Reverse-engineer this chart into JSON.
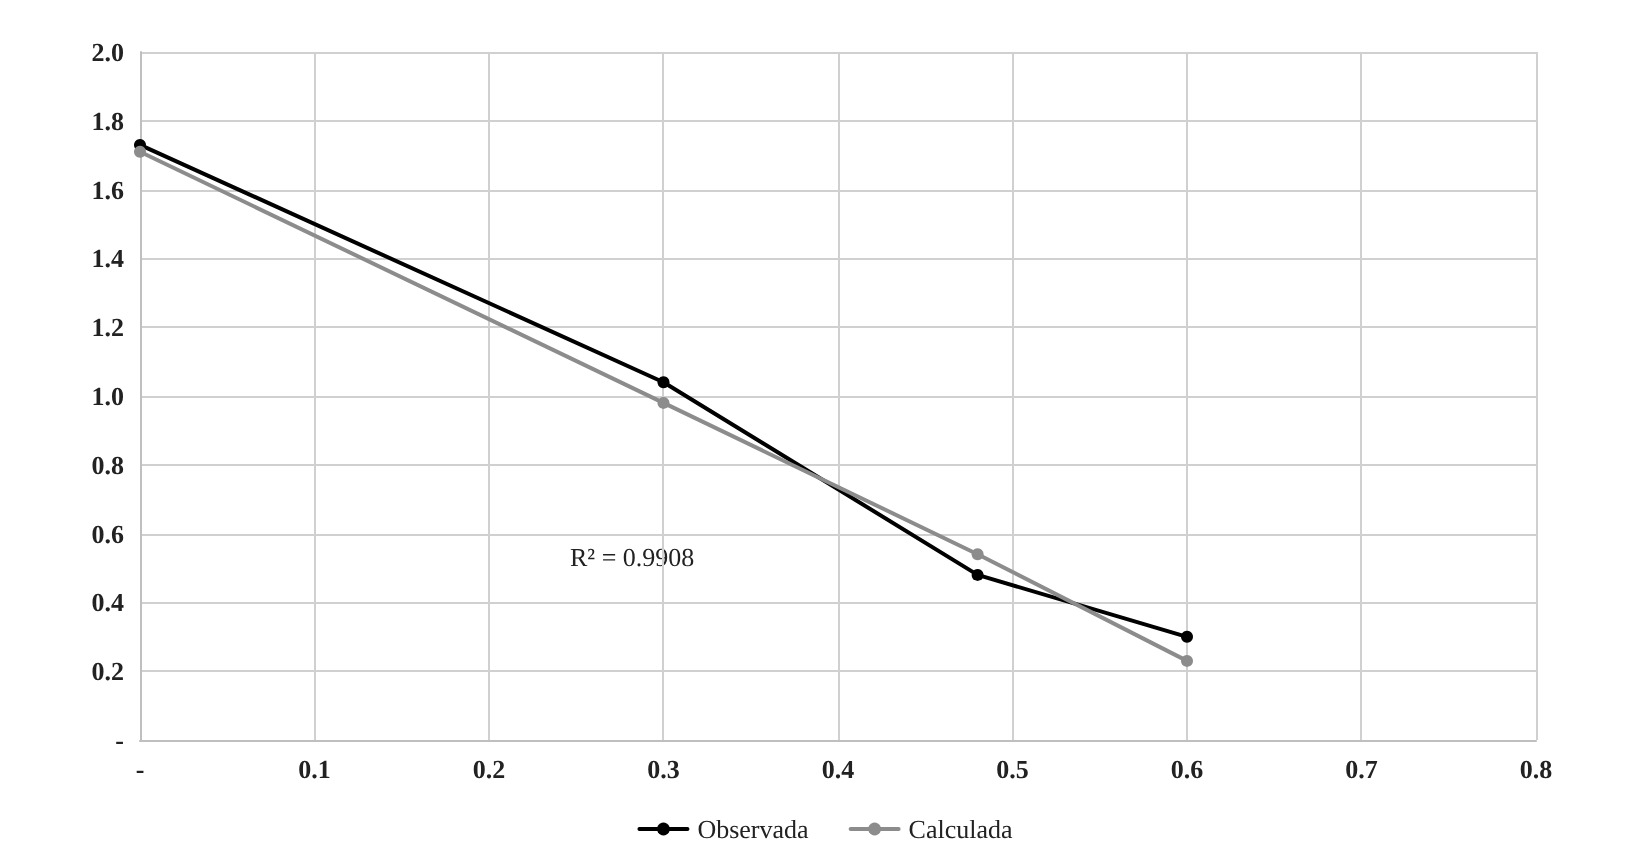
{
  "chart_data": {
    "type": "line",
    "x": [
      0,
      0.3,
      0.48,
      0.6
    ],
    "series": [
      {
        "name": "Observada",
        "color": "#000000",
        "values": [
          1.73,
          1.04,
          0.48,
          0.3
        ]
      },
      {
        "name": "Calculada",
        "color": "#8c8c8c",
        "values": [
          1.71,
          0.98,
          0.54,
          0.23
        ]
      }
    ],
    "xlim": [
      0,
      0.8
    ],
    "xticks": [
      {
        "value": 0,
        "label": "-"
      },
      0.1,
      0.2,
      0.3,
      0.4,
      0.5,
      0.6,
      0.7,
      0.8
    ],
    "ylim": [
      0,
      2
    ],
    "yticks": [
      {
        "value": 0,
        "label": "-"
      },
      0.2,
      0.4,
      0.6,
      0.8,
      {
        "value": 1,
        "label": "1.0"
      },
      1.2,
      1.4,
      1.6,
      1.8,
      {
        "value": 2,
        "label": "2.0"
      }
    ],
    "annotations": [
      "R² = 0.9908"
    ],
    "grid": true,
    "legend": "bottom",
    "marker": "circle",
    "line_style": "solid"
  }
}
